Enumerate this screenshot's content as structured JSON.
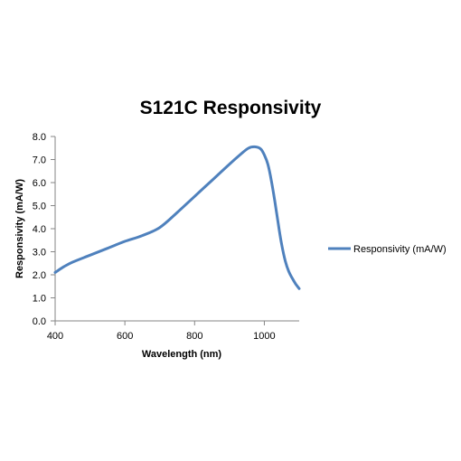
{
  "chart_data": {
    "type": "line",
    "title": "S121C Responsivity",
    "xlabel": "Wavelength (nm)",
    "ylabel": "Responsivity (mA/W)",
    "xlim": [
      400,
      1100
    ],
    "ylim": [
      0.0,
      8.0
    ],
    "x_ticks": [
      400,
      600,
      800,
      1000
    ],
    "y_ticks": [
      "0.0",
      "1.0",
      "2.0",
      "3.0",
      "4.0",
      "5.0",
      "6.0",
      "7.0",
      "8.0"
    ],
    "grid": false,
    "legend_position": "right",
    "series": [
      {
        "name": "Responsivity (mA/W)",
        "color": "#4f81bd",
        "x": [
          400,
          425,
          450,
          500,
          550,
          600,
          650,
          700,
          750,
          800,
          850,
          900,
          930,
          955,
          975,
          990,
          1000,
          1010,
          1020,
          1030,
          1040,
          1050,
          1060,
          1070,
          1080,
          1090,
          1100
        ],
        "y": [
          2.1,
          2.35,
          2.55,
          2.85,
          3.15,
          3.45,
          3.7,
          4.05,
          4.7,
          5.4,
          6.1,
          6.8,
          7.2,
          7.5,
          7.55,
          7.45,
          7.2,
          6.8,
          6.1,
          5.2,
          4.2,
          3.3,
          2.6,
          2.15,
          1.85,
          1.6,
          1.4
        ]
      }
    ]
  }
}
